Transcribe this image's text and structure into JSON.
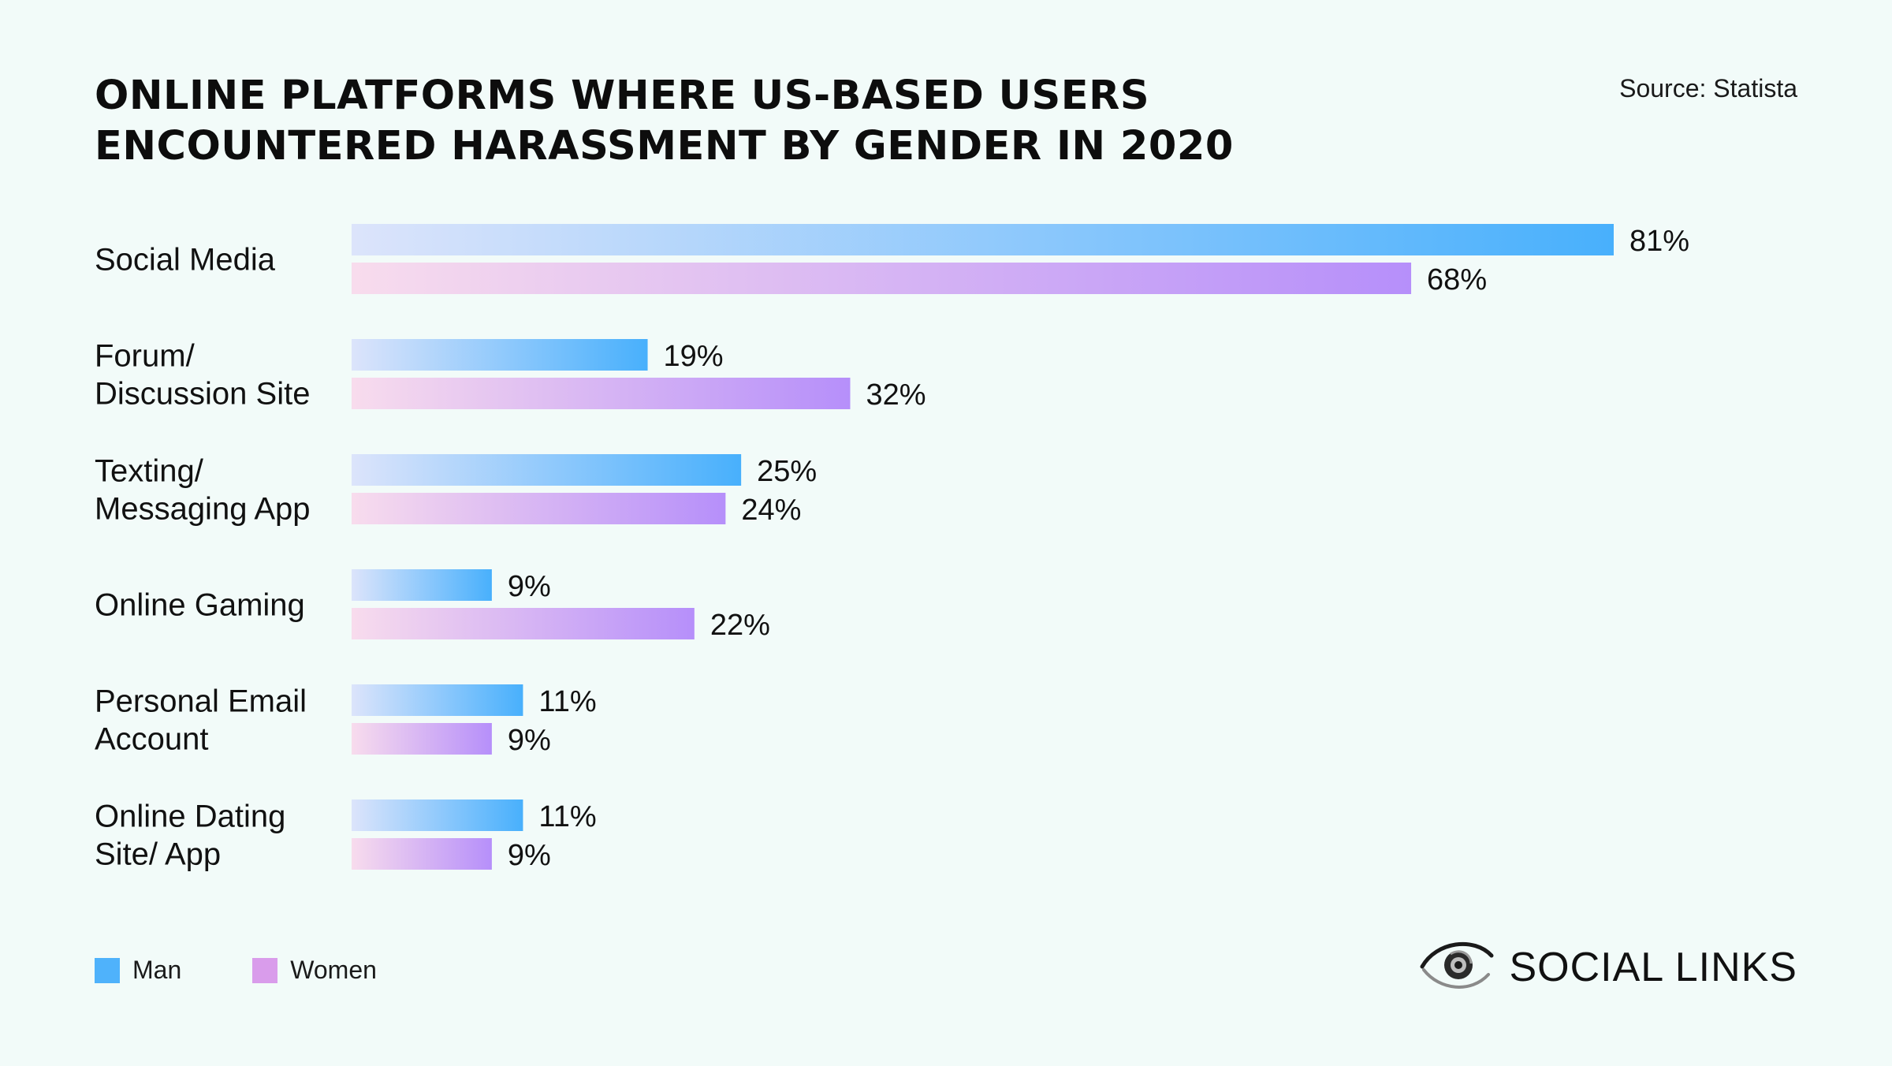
{
  "source": "Source:  Statista",
  "brand": {
    "name": "SOCIAL LINKS",
    "icon": "eye-logo-icon"
  },
  "legend": [
    {
      "label": "Man",
      "color": "#4fb2fb"
    },
    {
      "label": "Women",
      "color": "#d99ceb"
    }
  ],
  "chart_data": {
    "type": "bar",
    "orientation": "horizontal",
    "title": "ONLINE PLATFORMS WHERE US-BASED USERS ENCOUNTERED HARASSMENT BY GENDER IN 2020",
    "categories": [
      [
        "Social Media"
      ],
      [
        "Forum/",
        "Discussion Site"
      ],
      [
        "Texting/",
        "Messaging App"
      ],
      [
        "Online Gaming"
      ],
      [
        "Personal Email",
        "Account"
      ],
      [
        "Online Dating",
        "Site/ App"
      ]
    ],
    "series": [
      {
        "name": "Man",
        "values": [
          81,
          19,
          25,
          9,
          11,
          11
        ],
        "labels": [
          "81%",
          "19%",
          "25%",
          "9%",
          "11%",
          "11%"
        ],
        "gradient": [
          "#dce4fb",
          "#48b0fc"
        ]
      },
      {
        "name": "Women",
        "values": [
          68,
          32,
          24,
          22,
          9,
          9
        ],
        "labels": [
          "68%",
          "32%",
          "24%",
          "22%",
          "9%",
          "9%"
        ],
        "gradient": [
          "#f8dced",
          "#b68ffa"
        ]
      }
    ],
    "xlim": [
      0,
      81
    ],
    "grid": false,
    "legend_position": "bottom-left"
  }
}
